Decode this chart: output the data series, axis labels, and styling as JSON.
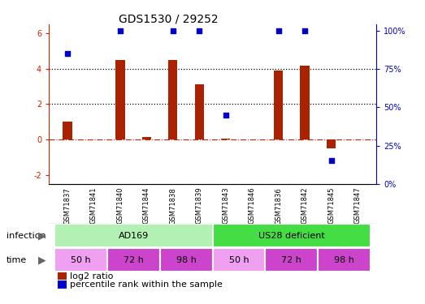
{
  "title": "GDS1530 / 29252",
  "samples": [
    "GSM71837",
    "GSM71841",
    "GSM71840",
    "GSM71844",
    "GSM71838",
    "GSM71839",
    "GSM71843",
    "GSM71846",
    "GSM71836",
    "GSM71842",
    "GSM71845",
    "GSM71847"
  ],
  "log2_ratio": [
    1.0,
    0.0,
    4.5,
    0.15,
    4.5,
    3.1,
    0.05,
    0.0,
    3.9,
    4.15,
    -0.5,
    0.0
  ],
  "percentile_scaled": [
    85,
    null,
    100,
    null,
    100,
    100,
    45,
    null,
    100,
    100,
    15,
    null
  ],
  "bar_color": "#aa2200",
  "dot_color": "#0000cc",
  "ylim_left": [
    -2.5,
    6.5
  ],
  "ylim_right": [
    0,
    104
  ],
  "yticks_left": [
    -2,
    0,
    2,
    4,
    6
  ],
  "ytick_labels_left": [
    "-2",
    "0",
    "2",
    "4",
    "6"
  ],
  "yticks_right": [
    0,
    25,
    50,
    75,
    100
  ],
  "ytick_labels_right": [
    "0%",
    "25%",
    "50%",
    "75%",
    "100%"
  ],
  "hline_dashed_red": 0,
  "hlines_dotted": [
    2,
    4
  ],
  "infection_groups": [
    {
      "label": "AD169",
      "start": 0,
      "end": 5,
      "color": "#b3f0b3"
    },
    {
      "label": "US28 deficient",
      "start": 6,
      "end": 11,
      "color": "#44dd44"
    }
  ],
  "time_groups": [
    {
      "label": "50 h",
      "start": 0,
      "end": 1,
      "color": "#f0a0f0"
    },
    {
      "label": "72 h",
      "start": 2,
      "end": 3,
      "color": "#cc44cc"
    },
    {
      "label": "98 h",
      "start": 4,
      "end": 5,
      "color": "#cc44cc"
    },
    {
      "label": "50 h",
      "start": 6,
      "end": 7,
      "color": "#f0a0f0"
    },
    {
      "label": "72 h",
      "start": 8,
      "end": 9,
      "color": "#cc44cc"
    },
    {
      "label": "98 h",
      "start": 10,
      "end": 11,
      "color": "#cc44cc"
    }
  ],
  "infection_label": "infection",
  "time_label": "time",
  "legend_bar_label": "log2 ratio",
  "legend_dot_label": "percentile rank within the sample",
  "background_color": "#ffffff",
  "sample_bg": "#c8c8c8",
  "bar_width": 0.35
}
